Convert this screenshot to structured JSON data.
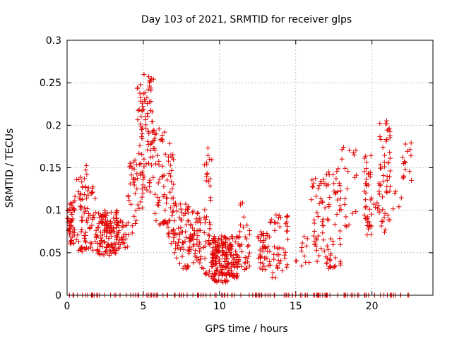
{
  "chart_data": {
    "type": "scatter",
    "title": "Day 103 of 2021, SRMTID for receiver glps",
    "xlabel": "GPS time / hours",
    "ylabel": "SRMTID / TECUs",
    "xlim": [
      0,
      24
    ],
    "ylim": [
      0,
      0.3
    ],
    "xticks": [
      0,
      5,
      10,
      15,
      20
    ],
    "yticks": [
      0,
      0.05,
      0.1,
      0.15,
      0.2,
      0.25,
      0.3
    ],
    "xtick_labels": [
      "0",
      "5",
      "10",
      "15",
      "20"
    ],
    "ytick_labels": [
      "0",
      "0.05",
      "0.1",
      "0.15",
      "0.2",
      "0.25",
      "0.3"
    ],
    "grid": true,
    "marker": "+",
    "color": "#e00000",
    "series": [
      {
        "name": "SRMTID",
        "clusters": [
          {
            "x": [
              0.0,
              0.5
            ],
            "y": [
              0.06,
              0.11
            ],
            "n": 45
          },
          {
            "x": [
              0.5,
              1.2
            ],
            "y": [
              0.05,
              0.14
            ],
            "n": 40
          },
          {
            "x": [
              1.1,
              1.3
            ],
            "y": [
              0.14,
              0.155
            ],
            "n": 3
          },
          {
            "x": [
              1.2,
              2.0
            ],
            "y": [
              0.05,
              0.13
            ],
            "n": 45
          },
          {
            "x": [
              2.0,
              3.3
            ],
            "y": [
              0.045,
              0.1
            ],
            "n": 120
          },
          {
            "x": [
              3.3,
              4.0
            ],
            "y": [
              0.055,
              0.09
            ],
            "n": 30
          },
          {
            "x": [
              4.0,
              4.6
            ],
            "y": [
              0.07,
              0.16
            ],
            "n": 30
          },
          {
            "x": [
              4.6,
              5.0
            ],
            "y": [
              0.1,
              0.25
            ],
            "n": 40
          },
          {
            "x": [
              5.0,
              5.7
            ],
            "y": [
              0.12,
              0.26
            ],
            "n": 60
          },
          {
            "x": [
              5.7,
              6.5
            ],
            "y": [
              0.08,
              0.2
            ],
            "n": 45
          },
          {
            "x": [
              6.5,
              7.0
            ],
            "y": [
              0.06,
              0.18
            ],
            "n": 40
          },
          {
            "x": [
              7.0,
              8.0
            ],
            "y": [
              0.03,
              0.11
            ],
            "n": 60
          },
          {
            "x": [
              8.0,
              9.0
            ],
            "y": [
              0.03,
              0.1
            ],
            "n": 60
          },
          {
            "x": [
              9.0,
              9.5
            ],
            "y": [
              0.02,
              0.175
            ],
            "n": 40
          },
          {
            "x": [
              9.5,
              10.5
            ],
            "y": [
              0.015,
              0.07
            ],
            "n": 140
          },
          {
            "x": [
              10.5,
              11.3
            ],
            "y": [
              0.02,
              0.07
            ],
            "n": 70
          },
          {
            "x": [
              11.3,
              12.0
            ],
            "y": [
              0.03,
              0.11
            ],
            "n": 30
          },
          {
            "x": [
              12.5,
              13.2
            ],
            "y": [
              0.03,
              0.075
            ],
            "n": 40
          },
          {
            "x": [
              13.2,
              14.5
            ],
            "y": [
              0.02,
              0.1
            ],
            "n": 50
          },
          {
            "x": [
              15.0,
              16.0
            ],
            "y": [
              0.03,
              0.07
            ],
            "n": 12
          },
          {
            "x": [
              16.0,
              17.0
            ],
            "y": [
              0.03,
              0.14
            ],
            "n": 45
          },
          {
            "x": [
              17.0,
              18.0
            ],
            "y": [
              0.03,
              0.15
            ],
            "n": 55
          },
          {
            "x": [
              18.0,
              19.0
            ],
            "y": [
              0.08,
              0.175
            ],
            "n": 20
          },
          {
            "x": [
              19.5,
              20.0
            ],
            "y": [
              0.07,
              0.17
            ],
            "n": 40
          },
          {
            "x": [
              20.0,
              20.5
            ],
            "y": [
              0.09,
              0.14
            ],
            "n": 10
          },
          {
            "x": [
              20.5,
              21.2
            ],
            "y": [
              0.07,
              0.215
            ],
            "n": 50
          },
          {
            "x": [
              21.2,
              22.0
            ],
            "y": [
              0.1,
              0.13
            ],
            "n": 5
          },
          {
            "x": [
              22.0,
              22.6
            ],
            "y": [
              0.13,
              0.18
            ],
            "n": 15
          },
          {
            "x": [
              0.0,
              22.6
            ],
            "y": [
              0.0,
              0.0
            ],
            "n": 140
          }
        ]
      }
    ]
  }
}
